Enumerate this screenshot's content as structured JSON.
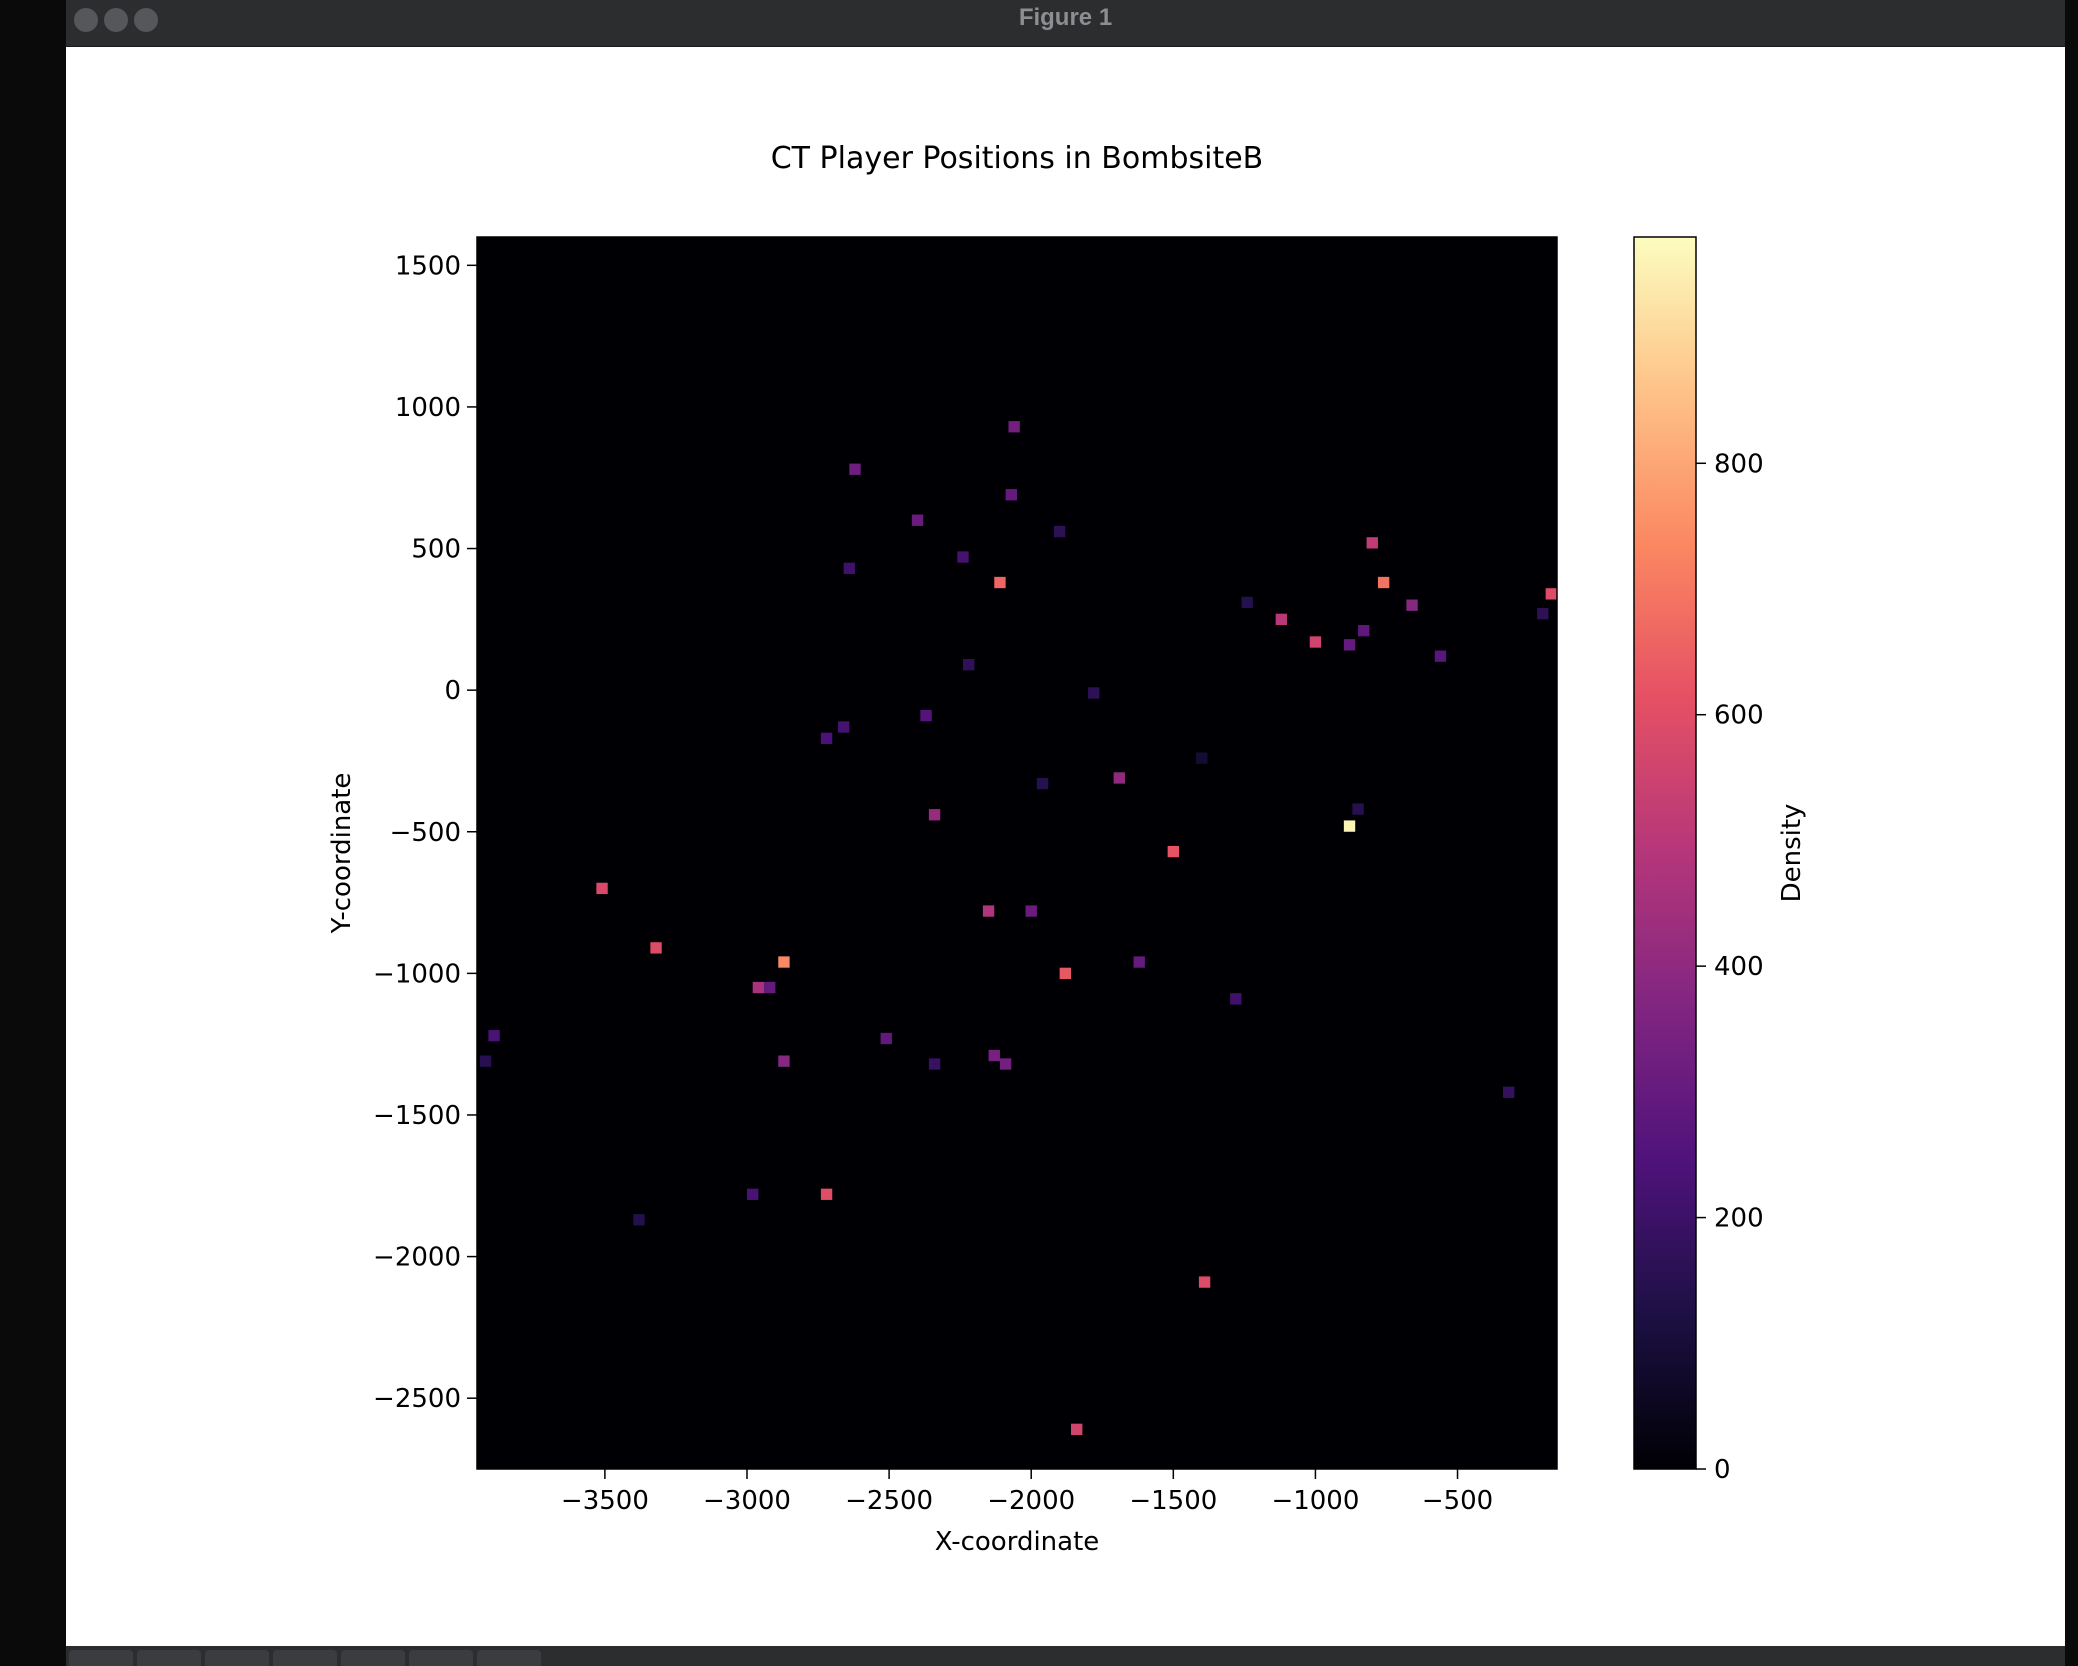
{
  "window": {
    "title": "Figure 1"
  },
  "toolbar": {
    "buttons": [
      "home-icon",
      "back-icon",
      "forward-icon",
      "pan-icon",
      "zoom-icon",
      "configure-icon",
      "save-icon"
    ]
  },
  "chart_data": {
    "type": "heatmap",
    "title": "CT Player Positions in BombsiteB",
    "xlabel": "X-coordinate",
    "ylabel": "Y-coordinate",
    "xlim": [
      -3950,
      -150
    ],
    "ylim": [
      -2750,
      1600
    ],
    "xticks": [
      -3500,
      -3000,
      -2500,
      -2000,
      -1500,
      -1000,
      -500
    ],
    "xtick_labels": [
      "−3500",
      "−3000",
      "−2500",
      "−2000",
      "−1500",
      "−1000",
      "−500"
    ],
    "yticks": [
      1500,
      1000,
      500,
      0,
      -500,
      -1000,
      -1500,
      -2000,
      -2500
    ],
    "ytick_labels": [
      "1500",
      "1000",
      "500",
      "0",
      "−500",
      "−1000",
      "−1500",
      "−2000",
      "−2500"
    ],
    "colorbar": {
      "label": "Density",
      "colormap": "magma",
      "range": [
        0,
        980
      ],
      "ticks": [
        0,
        200,
        400,
        600,
        800
      ],
      "tick_labels": [
        "0",
        "200",
        "400",
        "600",
        "800"
      ],
      "stops": [
        "#000004",
        "#1c1044",
        "#4f127b",
        "#812581",
        "#b5367a",
        "#e55064",
        "#fb8761",
        "#fec287",
        "#fcfdbf"
      ]
    },
    "background_value": 0,
    "bin_size": 40,
    "points": [
      {
        "x": -880,
        "y": -480,
        "v": 960
      },
      {
        "x": -2870,
        "y": -960,
        "v": 740
      },
      {
        "x": -2110,
        "y": 380,
        "v": 660
      },
      {
        "x": -760,
        "y": 380,
        "v": 690
      },
      {
        "x": -3320,
        "y": -910,
        "v": 590
      },
      {
        "x": -2720,
        "y": -1780,
        "v": 600
      },
      {
        "x": -1880,
        "y": -1000,
        "v": 630
      },
      {
        "x": -1500,
        "y": -570,
        "v": 620
      },
      {
        "x": -3510,
        "y": -700,
        "v": 580
      },
      {
        "x": -1390,
        "y": -2090,
        "v": 590
      },
      {
        "x": -1840,
        "y": -2610,
        "v": 560
      },
      {
        "x": -1000,
        "y": 170,
        "v": 560
      },
      {
        "x": -170,
        "y": 340,
        "v": 590
      },
      {
        "x": -800,
        "y": 520,
        "v": 520
      },
      {
        "x": -1120,
        "y": 250,
        "v": 500
      },
      {
        "x": -2150,
        "y": -780,
        "v": 480
      },
      {
        "x": -2960,
        "y": -1050,
        "v": 460
      },
      {
        "x": -2340,
        "y": -440,
        "v": 420
      },
      {
        "x": -1690,
        "y": -310,
        "v": 400
      },
      {
        "x": -2870,
        "y": -1310,
        "v": 380
      },
      {
        "x": -660,
        "y": 300,
        "v": 380
      },
      {
        "x": -2060,
        "y": 930,
        "v": 330
      },
      {
        "x": -2620,
        "y": 780,
        "v": 320
      },
      {
        "x": -2400,
        "y": 600,
        "v": 310
      },
      {
        "x": -2070,
        "y": 690,
        "v": 300
      },
      {
        "x": -2130,
        "y": -1290,
        "v": 340
      },
      {
        "x": -2090,
        "y": -1320,
        "v": 330
      },
      {
        "x": -2000,
        "y": -780,
        "v": 310
      },
      {
        "x": -1620,
        "y": -960,
        "v": 300
      },
      {
        "x": -2510,
        "y": -1230,
        "v": 290
      },
      {
        "x": -2920,
        "y": -1050,
        "v": 300
      },
      {
        "x": -880,
        "y": 160,
        "v": 300
      },
      {
        "x": -830,
        "y": 210,
        "v": 280
      },
      {
        "x": -560,
        "y": 120,
        "v": 270
      },
      {
        "x": -2370,
        "y": -90,
        "v": 260
      },
      {
        "x": -2720,
        "y": -170,
        "v": 240
      },
      {
        "x": -2660,
        "y": -130,
        "v": 220
      },
      {
        "x": -3890,
        "y": -1220,
        "v": 230
      },
      {
        "x": -2980,
        "y": -1780,
        "v": 230
      },
      {
        "x": -1280,
        "y": -1090,
        "v": 210
      },
      {
        "x": -2240,
        "y": 470,
        "v": 220
      },
      {
        "x": -2640,
        "y": 430,
        "v": 210
      },
      {
        "x": -2340,
        "y": -1320,
        "v": 190
      },
      {
        "x": -320,
        "y": -1420,
        "v": 180
      },
      {
        "x": -2220,
        "y": 90,
        "v": 170
      },
      {
        "x": -1780,
        "y": -10,
        "v": 160
      },
      {
        "x": -1900,
        "y": 560,
        "v": 160
      },
      {
        "x": -3380,
        "y": -1870,
        "v": 140
      },
      {
        "x": -1960,
        "y": -330,
        "v": 150
      },
      {
        "x": -850,
        "y": -420,
        "v": 150
      },
      {
        "x": -1240,
        "y": 310,
        "v": 140
      },
      {
        "x": -200,
        "y": 270,
        "v": 160
      },
      {
        "x": -1400,
        "y": -240,
        "v": 90
      },
      {
        "x": -3920,
        "y": -1310,
        "v": 150
      }
    ]
  }
}
